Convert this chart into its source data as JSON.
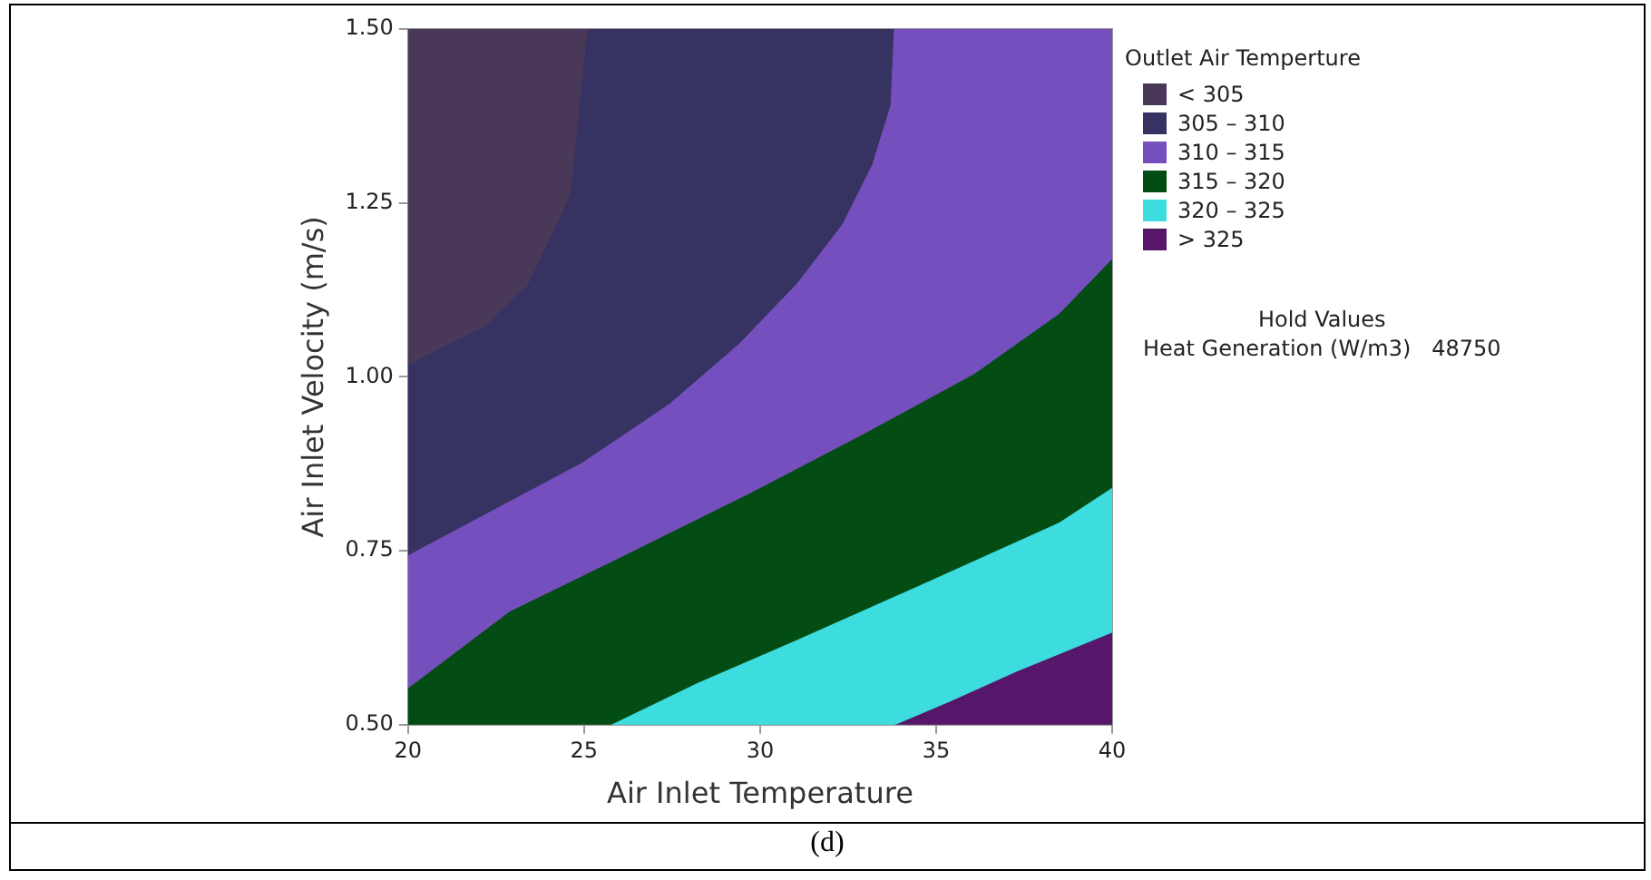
{
  "chart_data": {
    "type": "area",
    "xlabel": "Air Inlet Temperature",
    "ylabel": "Air Inlet Velocity (m/s)",
    "legend_title": "Outlet Air Temperture",
    "legend": "right",
    "xlim": [
      20,
      40
    ],
    "xticks": [
      20,
      25,
      30,
      35,
      40
    ],
    "ylim": [
      0.5,
      1.5
    ],
    "yticks": [
      {
        "value": 0.5,
        "label": "0.50"
      },
      {
        "value": 0.75,
        "label": "0.75"
      },
      {
        "value": 1.0,
        "label": "1.00"
      },
      {
        "value": 1.25,
        "label": "1.25"
      },
      {
        "value": 1.5,
        "label": "1.50"
      }
    ],
    "series": [
      {
        "name": "< 305",
        "color": "#4a3858",
        "x": [
          20,
          25.08,
          24.6,
          23.4,
          22.2,
          20
        ],
        "values": [
          1.5,
          1.5,
          1.262,
          1.134,
          1.074,
          1.018
        ]
      },
      {
        "name": "305 – 310",
        "color": "#363261",
        "x": [
          25.08,
          33.79,
          33.69,
          33.17,
          32.32,
          31.03,
          29.4,
          27.43,
          24.94,
          22.37,
          20,
          20,
          22.2,
          23.4,
          24.6
        ],
        "values": [
          1.5,
          1.5,
          1.39,
          1.305,
          1.219,
          1.134,
          1.048,
          0.962,
          0.877,
          0.808,
          0.744,
          1.018,
          1.074,
          1.134,
          1.262
        ]
      },
      {
        "name": "310 – 315",
        "color": "#744fbd",
        "x": [
          33.79,
          40,
          40,
          38.49,
          36.09,
          33.0,
          29.74,
          26.31,
          22.88,
          20,
          20,
          22.37,
          24.94,
          27.43,
          29.4,
          31.03,
          32.32,
          33.17,
          33.69
        ],
        "values": [
          1.5,
          1.5,
          1.17,
          1.091,
          1.005,
          0.92,
          0.834,
          0.748,
          0.663,
          0.553,
          0.744,
          0.808,
          0.877,
          0.962,
          1.048,
          1.134,
          1.219,
          1.305,
          1.39
        ]
      },
      {
        "name": "315 – 320",
        "color": "#034d14",
        "x": [
          40,
          40,
          38.49,
          34.72,
          30.94,
          28.2,
          25.75,
          20,
          20,
          22.88,
          26.31,
          29.74,
          33.0,
          36.09,
          38.49
        ],
        "values": [
          1.17,
          0.841,
          0.791,
          0.705,
          0.62,
          0.56,
          0.5,
          0.5,
          0.553,
          0.663,
          0.748,
          0.834,
          0.92,
          1.005,
          1.091
        ]
      },
      {
        "name": "320 – 325",
        "color": "#3cdcdf",
        "x": [
          40,
          40,
          37.29,
          35.4,
          33.82,
          25.75,
          28.2,
          30.94,
          34.72,
          38.49
        ],
        "values": [
          0.841,
          0.633,
          0.577,
          0.534,
          0.5,
          0.5,
          0.56,
          0.62,
          0.705,
          0.791
        ]
      },
      {
        "name": "> 325",
        "color": "#561669",
        "x": [
          40,
          40,
          33.82,
          35.4,
          37.29
        ],
        "values": [
          0.633,
          0.5,
          0.5,
          0.534,
          0.577
        ]
      }
    ],
    "annotations": [
      "Hold Values",
      "Heat Generation (W/m3)   48750",
      "(d)"
    ]
  }
}
